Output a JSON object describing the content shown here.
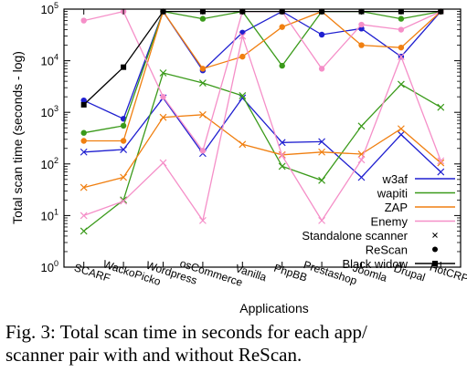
{
  "chart_data": {
    "type": "line",
    "title": "",
    "xlabel": "Applications",
    "ylabel": "Total scan time (seconds - log)",
    "yscale": "log",
    "ylim": [
      1,
      100000
    ],
    "yticks": [
      {
        "value": 1,
        "base": "10",
        "exp": "0"
      },
      {
        "value": 10,
        "base": "10",
        "exp": "1"
      },
      {
        "value": 100,
        "base": "10",
        "exp": "2"
      },
      {
        "value": 1000,
        "base": "10",
        "exp": "3"
      },
      {
        "value": 10000,
        "base": "10",
        "exp": "4"
      },
      {
        "value": 100000,
        "base": "10",
        "exp": "5"
      }
    ],
    "categories": [
      "SCARF",
      "WackoPicko",
      "Wordpress",
      "osCommerce",
      "Vanilla",
      "PhpBB",
      "Prestashop",
      "Joomla",
      "Drupal",
      "HotCRP"
    ],
    "legend_position": "bottom-right",
    "grid": false,
    "series": [
      {
        "name": "w3af",
        "color": "#1f1fd0",
        "marker": "cross",
        "variant": "standalone",
        "values": [
          170,
          190,
          1900,
          160,
          1900,
          260,
          270,
          55,
          370,
          70
        ]
      },
      {
        "name": "w3af",
        "color": "#1f1fd0",
        "marker": "dot",
        "variant": "rescan",
        "values": [
          1700,
          750,
          90000,
          6500,
          35000,
          90000,
          32000,
          42000,
          12000,
          90000
        ]
      },
      {
        "name": "wapiti",
        "color": "#3a9a1a",
        "marker": "cross",
        "variant": "standalone",
        "values": [
          5,
          20,
          5800,
          3700,
          2100,
          90,
          48,
          540,
          3500,
          1250
        ]
      },
      {
        "name": "wapiti",
        "color": "#3a9a1a",
        "marker": "dot",
        "variant": "rescan",
        "values": [
          400,
          550,
          90000,
          65000,
          90000,
          8000,
          90000,
          90000,
          65000,
          90000
        ]
      },
      {
        "name": "ZAP",
        "color": "#f07f10",
        "marker": "cross",
        "variant": "standalone",
        "values": [
          35,
          55,
          800,
          900,
          240,
          150,
          170,
          155,
          480,
          105
        ]
      },
      {
        "name": "ZAP",
        "color": "#f07f10",
        "marker": "dot",
        "variant": "rescan",
        "values": [
          280,
          280,
          90000,
          7000,
          12000,
          45000,
          90000,
          20000,
          18000,
          90000
        ]
      },
      {
        "name": "Enemy",
        "color": "#f58fc8",
        "marker": "cross",
        "variant": "standalone",
        "values": [
          10,
          19,
          105,
          8,
          30000,
          145,
          8,
          120,
          12000,
          115
        ]
      },
      {
        "name": "Enemy",
        "color": "#f58fc8",
        "marker": "dot",
        "variant": "rescan",
        "values": [
          60000,
          90000,
          2000,
          180,
          90000,
          90000,
          7000,
          50000,
          40000,
          90000
        ]
      },
      {
        "name": "Black widow",
        "color": "#000000",
        "marker": "square",
        "variant": "blackwidow",
        "values": [
          1400,
          7500,
          90000,
          90000,
          90000,
          90000,
          90000,
          90000,
          90000,
          90000
        ]
      }
    ],
    "legend": [
      {
        "label": "w3af",
        "type": "line",
        "color": "#1f1fd0"
      },
      {
        "label": "wapiti",
        "type": "line",
        "color": "#3a9a1a"
      },
      {
        "label": "ZAP",
        "type": "line",
        "color": "#f07f10"
      },
      {
        "label": "Enemy",
        "type": "line",
        "color": "#f58fc8"
      },
      {
        "label": "Standalone scanner",
        "type": "cross",
        "color": "#000000"
      },
      {
        "label": "ReScan",
        "type": "dot",
        "color": "#000000"
      },
      {
        "label": "Black widow",
        "type": "square-line",
        "color": "#000000"
      }
    ]
  },
  "caption": {
    "line1": "Fig. 3: Total scan time in seconds for each app/",
    "line2": "scanner pair with and without ReScan."
  }
}
